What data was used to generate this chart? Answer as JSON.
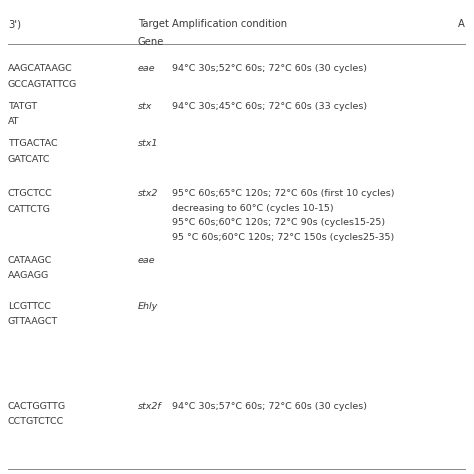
{
  "col0_header": "3')",
  "col1_header_line1": "Target",
  "col1_header_line2": "Gene",
  "col2_header": "Amplification condition",
  "col3_header": "A",
  "rows": [
    {
      "primer_line1": "AAGCATAAGC",
      "primer_line2": "GCCAGTATTCG",
      "gene": "eae",
      "condition": "94°C 30s;52°C 60s; 72°C 60s (30 cycles)"
    },
    {
      "primer_line1": "TATGT",
      "primer_line2": "AT",
      "gene": "stx",
      "condition": "94°C 30s;45°C 60s; 72°C 60s (33 cycles)"
    },
    {
      "primer_line1": "TTGACTAC",
      "primer_line2": "GATCATC",
      "gene": "stx1",
      "condition": ""
    },
    {
      "primer_line1": "CTGCTCC",
      "primer_line2": "CATTCTG",
      "gene": "stx2",
      "condition": "95°C 60s;65°C 120s; 72°C 60s (first 10 cycles)\ndecreasing to 60°C (cycles 10-15)\n95°C 60s;60°C 120s; 72°C 90s (cycles15-25)\n95 °C 60s;60°C 120s; 72°C 150s (cycles25-35)"
    },
    {
      "primer_line1": "CATAAGC",
      "primer_line2": "AAGAGG",
      "gene": "eae",
      "condition": ""
    },
    {
      "primer_line1": "LCGTTCC",
      "primer_line2": "GTTAAGCT",
      "gene": "Ehly",
      "condition": ""
    },
    {
      "primer_line1": "CACTGGTTG",
      "primer_line2": "CCTGTCTCC",
      "gene": "stx2f",
      "condition": "94°C 30s;57°C 60s; 72°C 60s (30 cycles)"
    }
  ],
  "background_color": "#ffffff",
  "text_color": "#3a3a3a",
  "line_color": "#888888",
  "font_size": 6.8,
  "header_font_size": 7.2
}
